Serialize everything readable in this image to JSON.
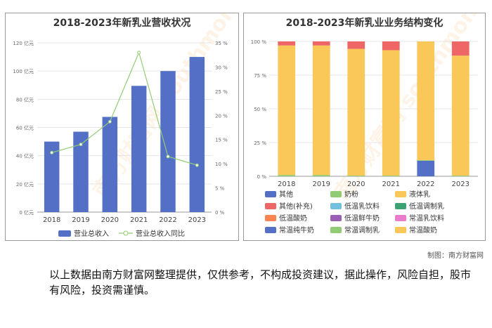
{
  "left": {
    "title": "2018-2023年新乳业营收状况",
    "chart_data": {
      "type": "bar",
      "categories": [
        "2018",
        "2019",
        "2020",
        "2021",
        "2022",
        "2023"
      ],
      "series": [
        {
          "name": "营业总收入",
          "type": "bar",
          "axis": "left",
          "values": [
            50,
            57,
            67.5,
            89.5,
            100,
            110
          ]
        },
        {
          "name": "营业总收入同比",
          "type": "line",
          "axis": "right",
          "values": [
            12.3,
            14,
            18.7,
            33,
            11.5,
            9.7
          ]
        }
      ],
      "y_left": {
        "ticks": [
          "0 亿元",
          "20 亿元",
          "40 亿元",
          "60 亿元",
          "80 亿元",
          "100 亿元",
          "120 亿元"
        ],
        "min": 0,
        "max": 120
      },
      "y_right": {
        "ticks": [
          "0 %",
          "5 %",
          "10 %",
          "15 %",
          "20 %",
          "25 %",
          "30 %",
          "35 %"
        ],
        "min": 0,
        "max": 35
      },
      "legend": [
        "营业总收入",
        "营业总收入同比"
      ],
      "colors": {
        "bar": "#5470c6",
        "line": "#91cc75"
      }
    }
  },
  "right": {
    "title": "2018-2023年新乳业业务结构变化",
    "chart_data": {
      "type": "bar",
      "stacked": true,
      "categories": [
        "2018",
        "2019",
        "2020",
        "2021",
        "2022",
        "2023"
      ],
      "y_ticks": [
        "0 %",
        "25 %",
        "50 %",
        "75 %",
        "100 %"
      ],
      "ylim": [
        0,
        100
      ],
      "series": [
        {
          "name": "其他",
          "color": "#5470c6",
          "values": [
            0,
            0,
            0,
            0,
            11.5,
            0
          ]
        },
        {
          "name": "奶粉",
          "color": "#91cc75",
          "values": [
            1,
            1,
            0.5,
            0.5,
            0.5,
            0.5
          ]
        },
        {
          "name": "液体乳",
          "color": "#fac858",
          "values": [
            96,
            96,
            94,
            93,
            88,
            89
          ]
        },
        {
          "name": "其他(补充)",
          "color": "#ee6666",
          "values": [
            3,
            3,
            5.5,
            6.5,
            0,
            10.5
          ]
        },
        {
          "name": "低温乳饮料",
          "color": "#73c0de",
          "values": [
            0,
            0,
            0,
            0,
            0,
            0
          ]
        },
        {
          "name": "低温调制乳",
          "color": "#3ba272",
          "values": [
            0,
            0,
            0,
            0,
            0,
            0
          ]
        },
        {
          "name": "低温酸奶",
          "color": "#fc8452",
          "values": [
            0,
            0,
            0,
            0,
            0,
            0
          ]
        },
        {
          "name": "低温鲜牛奶",
          "color": "#9a60b4",
          "values": [
            0,
            0,
            0,
            0,
            0,
            0
          ]
        },
        {
          "name": "常温乳饮料",
          "color": "#ea7ccc",
          "values": [
            0,
            0,
            0,
            0,
            0,
            0
          ]
        },
        {
          "name": "常温纯牛奶",
          "color": "#5470c6",
          "values": [
            0,
            0,
            0,
            0,
            0,
            0
          ]
        },
        {
          "name": "常温调制乳",
          "color": "#91cc75",
          "values": [
            0,
            0,
            0,
            0,
            0,
            0
          ]
        },
        {
          "name": "常温酸奶",
          "color": "#fac858",
          "values": [
            0,
            0,
            0,
            0,
            0,
            0
          ]
        }
      ]
    }
  },
  "footer": {
    "credit": "制图：南方财富网",
    "disclaimer": "以上数据由南方财富网整理提供，仅供参考，不构成投资建议，据此操作，风险自担，股市有风险，投资需谨慎。",
    "watermark": "南方财富网 southmoney.com"
  }
}
